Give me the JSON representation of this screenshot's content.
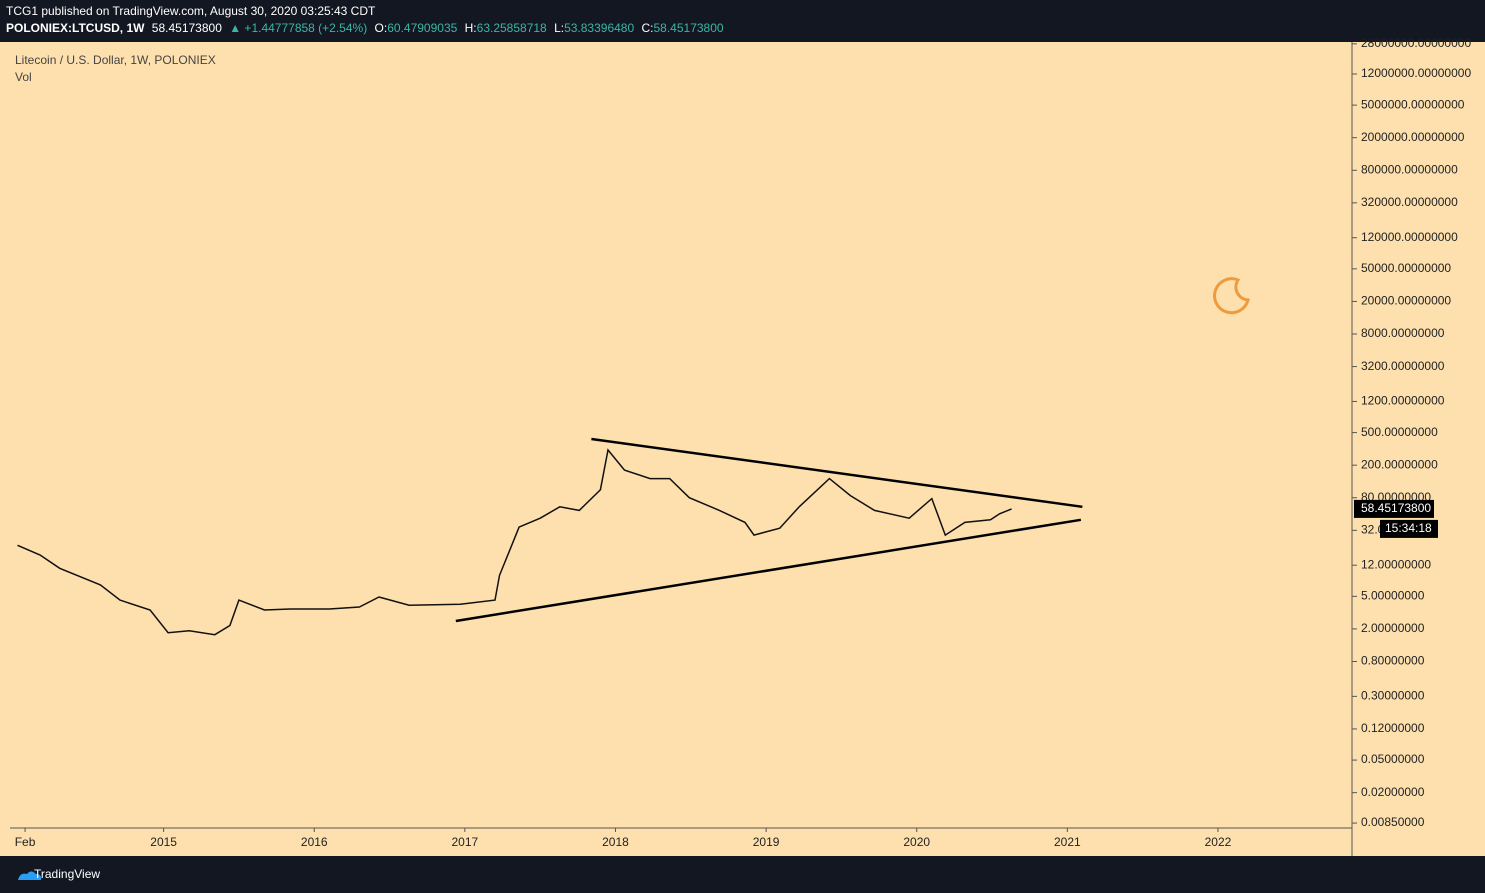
{
  "header": {
    "publisher": "TCG1 published on TradingView.com, August 30, 2020 03:25:43 CDT",
    "symbol": "POLONIEX:LTCUSD, 1W",
    "last": "58.45173800",
    "change": "▲ +1.44777858 (+2.54%)",
    "ohlc": [
      {
        "label": "O:",
        "value": "60.47909035"
      },
      {
        "label": "H:",
        "value": "63.25858718"
      },
      {
        "label": "L:",
        "value": "53.83396480"
      },
      {
        "label": "C:",
        "value": "58.45173800"
      }
    ]
  },
  "chart_data": {
    "type": "line",
    "title": "Litecoin / U.S. Dollar, 1W, POLONIEX",
    "indicator": "Vol",
    "log_scale": true,
    "grid": false,
    "background": "#fde0ae",
    "x": [
      2014.03,
      2014.18,
      2014.31,
      2014.58,
      2014.71,
      2014.91,
      2015.03,
      2015.17,
      2015.34,
      2015.44,
      2015.5,
      2015.67,
      2015.84,
      2016.1,
      2016.3,
      2016.43,
      2016.63,
      2016.97,
      2017.2,
      2017.23,
      2017.36,
      2017.5,
      2017.63,
      2017.76,
      2017.9,
      2017.95,
      2018.06,
      2018.23,
      2018.36,
      2018.49,
      2018.69,
      2018.86,
      2018.92,
      2019.09,
      2019.22,
      2019.42,
      2019.56,
      2019.72,
      2019.95,
      2020.1,
      2020.19,
      2020.32,
      2020.49,
      2020.55,
      2020.63
    ],
    "series": [
      {
        "color": "#111111",
        "values": [
          21,
          16,
          11,
          6.9,
          4.5,
          3.4,
          1.8,
          1.9,
          1.7,
          2.2,
          4.5,
          3.4,
          3.5,
          3.5,
          3.7,
          4.9,
          3.9,
          4,
          4.5,
          9,
          35,
          45,
          62,
          56,
          100,
          306,
          174,
          137,
          137,
          80,
          56,
          40,
          28,
          34,
          62,
          137,
          85,
          56,
          45,
          78,
          28,
          40,
          43,
          51,
          58.45
        ]
      }
    ],
    "trendlines": [
      {
        "color": "#000000",
        "x": [
          2017.84,
          2021.1
        ],
        "y": [
          418,
          62
        ]
      },
      {
        "color": "#000000",
        "x": [
          2016.94,
          2021.09
        ],
        "y": [
          2.5,
          43
        ]
      }
    ],
    "xlim": [
      2013.98,
      2022.89
    ],
    "xticks": [
      {
        "value": 2014.08,
        "label": "Feb"
      },
      2015,
      2016,
      2017,
      2018,
      2019,
      2020,
      2021,
      2022
    ],
    "ylim": [
      0.0074,
      29500000
    ],
    "yticks": [
      {
        "value": 28000000,
        "label": "28000000.00000000"
      },
      {
        "value": 12000000,
        "label": "12000000.00000000"
      },
      {
        "value": 5000000,
        "label": "5000000.00000000"
      },
      {
        "value": 2000000,
        "label": "2000000.00000000"
      },
      {
        "value": 800000,
        "label": "800000.00000000"
      },
      {
        "value": 320000,
        "label": "320000.00000000"
      },
      {
        "value": 120000,
        "label": "120000.00000000"
      },
      {
        "value": 50000,
        "label": "50000.00000000"
      },
      {
        "value": 20000,
        "label": "20000.00000000"
      },
      {
        "value": 8000,
        "label": "8000.00000000"
      },
      {
        "value": 3200,
        "label": "3200.00000000"
      },
      {
        "value": 1200,
        "label": "1200.00000000"
      },
      {
        "value": 500,
        "label": "500.00000000"
      },
      {
        "value": 200,
        "label": "200.00000000"
      },
      {
        "value": 80,
        "label": "80.00000000"
      },
      {
        "value": 32,
        "label": "32.00000000"
      },
      {
        "value": 12,
        "label": "12.00000000"
      },
      {
        "value": 5,
        "label": "5.00000000"
      },
      {
        "value": 2,
        "label": "2.00000000"
      },
      {
        "value": 0.8,
        "label": "0.80000000"
      },
      {
        "value": 0.3,
        "label": "0.30000000"
      },
      {
        "value": 0.12,
        "label": "0.12000000"
      },
      {
        "value": 0.05,
        "label": "0.05000000"
      },
      {
        "value": 0.02,
        "label": "0.02000000"
      },
      {
        "value": 0.0085,
        "label": "0.00850000"
      }
    ],
    "last_price": {
      "value": 58.45,
      "label": "58.45173800"
    },
    "countdown": "15:34:18"
  },
  "footer": {
    "brand": "TradingView"
  }
}
